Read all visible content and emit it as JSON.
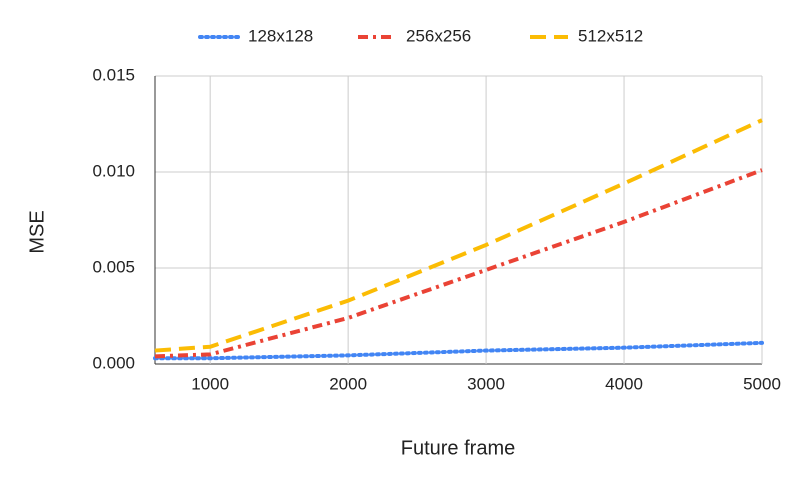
{
  "chart_data": {
    "type": "line",
    "x_label": "Future frame",
    "y_label": "MSE",
    "x": [
      600,
      1000,
      2000,
      3000,
      4000,
      5000
    ],
    "series": [
      {
        "name": "128x128",
        "color": "#4285f4",
        "dash": "dotted",
        "values": [
          0.0003,
          0.0003,
          0.00045,
          0.0007,
          0.00085,
          0.0011
        ]
      },
      {
        "name": "256x256",
        "color": "#ea4335",
        "dash": "dashdot",
        "values": [
          0.0004,
          0.0005,
          0.0024,
          0.0049,
          0.0074,
          0.0101
        ]
      },
      {
        "name": "512x512",
        "color": "#fbbc04",
        "dash": "dashed",
        "values": [
          0.0007,
          0.0009,
          0.0033,
          0.0062,
          0.0094,
          0.0127
        ]
      }
    ],
    "xlim": [
      600,
      5000
    ],
    "xticks": [
      1000,
      2000,
      3000,
      4000,
      5000
    ],
    "ylim": [
      0,
      0.015
    ],
    "yticks": [
      {
        "value": 0,
        "label": "0.000"
      },
      {
        "value": 0.005,
        "label": "0.005"
      },
      {
        "value": 0.01,
        "label": "0.010"
      },
      {
        "value": 0.015,
        "label": "0.015"
      }
    ],
    "grid": true,
    "legend": "top"
  }
}
